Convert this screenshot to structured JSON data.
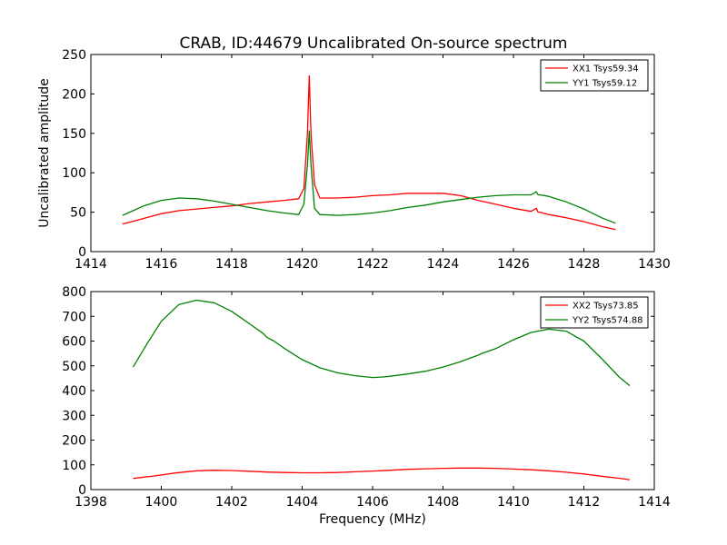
{
  "figure": {
    "title": "CRAB, ID:44679 Uncalibrated On-source spectrum"
  },
  "chart_data": [
    {
      "type": "line",
      "title": "CRAB, ID:44679 Uncalibrated On-source spectrum",
      "xlabel": "",
      "ylabel": "Uncalibrated amplitude",
      "xlim": [
        1414,
        1430
      ],
      "ylim": [
        0,
        250
      ],
      "xticks": [
        1414,
        1416,
        1418,
        1420,
        1422,
        1424,
        1426,
        1428,
        1430
      ],
      "yticks": [
        0,
        50,
        100,
        150,
        200,
        250
      ],
      "grid": false,
      "legend_position": "top-right",
      "series": [
        {
          "name": "XX1 Tsys59.34",
          "color": "#ff0000",
          "x": [
            1414.9,
            1415.5,
            1416.0,
            1416.5,
            1417.0,
            1417.5,
            1418.0,
            1418.5,
            1419.0,
            1419.5,
            1419.9,
            1420.05,
            1420.15,
            1420.2,
            1420.25,
            1420.35,
            1420.5,
            1421.0,
            1421.5,
            1422.0,
            1422.5,
            1423.0,
            1423.5,
            1424.0,
            1424.5,
            1425.0,
            1425.5,
            1426.0,
            1426.5,
            1426.65,
            1426.7,
            1426.75,
            1427.0,
            1427.5,
            1428.0,
            1428.5,
            1428.9
          ],
          "y": [
            35,
            42,
            48,
            52,
            54,
            56,
            58,
            61,
            63,
            65,
            67,
            80,
            150,
            223,
            150,
            85,
            68,
            68,
            69,
            71,
            72,
            74,
            74,
            74,
            71,
            65,
            60,
            55,
            51,
            55,
            50,
            50,
            47,
            43,
            38,
            32,
            28
          ]
        },
        {
          "name": "YY1 Tsys59.12",
          "color": "#008000",
          "x": [
            1414.9,
            1415.5,
            1416.0,
            1416.5,
            1417.0,
            1417.5,
            1418.0,
            1418.5,
            1419.0,
            1419.5,
            1419.9,
            1420.05,
            1420.15,
            1420.2,
            1420.25,
            1420.35,
            1420.5,
            1421.0,
            1421.5,
            1422.0,
            1422.5,
            1423.0,
            1423.5,
            1424.0,
            1424.5,
            1425.0,
            1425.5,
            1426.0,
            1426.5,
            1426.65,
            1426.7,
            1426.75,
            1427.0,
            1427.5,
            1428.0,
            1428.5,
            1428.9
          ],
          "y": [
            46,
            58,
            65,
            68,
            67,
            64,
            60,
            56,
            52,
            49,
            47,
            60,
            110,
            153,
            110,
            55,
            47,
            46,
            47,
            49,
            52,
            56,
            59,
            63,
            66,
            69,
            71,
            72,
            72,
            76,
            72,
            72,
            70,
            63,
            54,
            43,
            36
          ]
        }
      ]
    },
    {
      "type": "line",
      "title": "",
      "xlabel": "Frequency (MHz)",
      "ylabel": "",
      "xlim": [
        1398,
        1414
      ],
      "ylim": [
        0,
        800
      ],
      "xticks": [
        1398,
        1400,
        1402,
        1404,
        1406,
        1408,
        1410,
        1412,
        1414
      ],
      "yticks": [
        0,
        100,
        200,
        300,
        400,
        500,
        600,
        700,
        800
      ],
      "grid": false,
      "legend_position": "top-right",
      "series": [
        {
          "name": "XX2 Tsys73.85",
          "color": "#ff0000",
          "x": [
            1399.2,
            1399.8,
            1400.4,
            1401.0,
            1401.5,
            1402.0,
            1402.5,
            1403.0,
            1403.5,
            1404.0,
            1404.5,
            1405.0,
            1405.5,
            1406.0,
            1406.5,
            1407.0,
            1407.5,
            1408.0,
            1408.5,
            1409.0,
            1409.5,
            1410.0,
            1410.5,
            1411.0,
            1411.5,
            1412.0,
            1412.5,
            1413.0,
            1413.3
          ],
          "y": [
            45,
            55,
            67,
            76,
            78,
            77,
            74,
            71,
            69,
            68,
            68,
            69,
            72,
            75,
            78,
            82,
            84,
            86,
            87,
            87,
            86,
            83,
            80,
            76,
            70,
            63,
            54,
            46,
            40
          ]
        },
        {
          "name": "YY2 Tsys574.88",
          "color": "#008000",
          "x": [
            1399.2,
            1399.6,
            1400.0,
            1400.5,
            1401.0,
            1401.5,
            1402.0,
            1402.5,
            1402.9,
            1403.0,
            1403.2,
            1403.5,
            1404.0,
            1404.5,
            1405.0,
            1405.5,
            1406.0,
            1406.3,
            1406.5,
            1407.0,
            1407.5,
            1408.0,
            1408.5,
            1409.0,
            1409.1,
            1409.5,
            1410.0,
            1410.5,
            1411.0,
            1411.5,
            1412.0,
            1412.5,
            1413.0,
            1413.3
          ],
          "y": [
            495,
            590,
            680,
            748,
            765,
            755,
            720,
            670,
            630,
            615,
            600,
            570,
            525,
            492,
            472,
            460,
            453,
            455,
            458,
            467,
            478,
            495,
            517,
            543,
            550,
            570,
            605,
            635,
            648,
            640,
            600,
            530,
            455,
            420
          ]
        }
      ]
    }
  ]
}
